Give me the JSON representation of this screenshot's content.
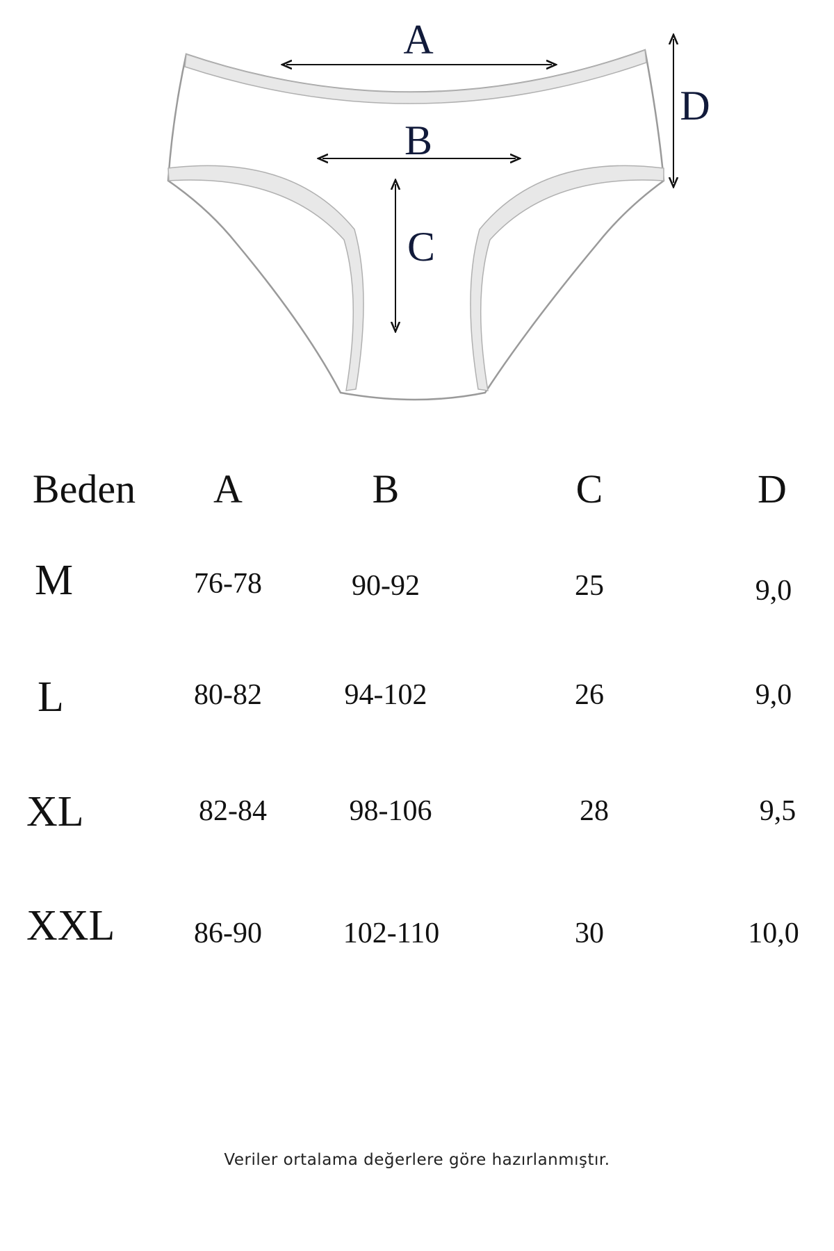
{
  "diagram": {
    "labels": {
      "a": "A",
      "b": "B",
      "c": "C",
      "d": "D"
    },
    "line_color": "#111a3a"
  },
  "table": {
    "headers": [
      "Beden",
      "A",
      "B",
      "C",
      "D"
    ],
    "rows": [
      {
        "size": "M",
        "a": "76-78",
        "b": "90-92",
        "c": "25",
        "d": "9,0"
      },
      {
        "size": "L",
        "a": "80-82",
        "b": "94-102",
        "c": "26",
        "d": "9,0"
      },
      {
        "size": "XL",
        "a": "82-84",
        "b": "98-106",
        "c": "28",
        "d": "9,5"
      },
      {
        "size": "XXL",
        "a": "86-90",
        "b": "102-110",
        "c": "30",
        "d": "10,0"
      }
    ]
  },
  "footer": {
    "note": "Veriler ortalama değerlere göre hazırlanmıştır."
  }
}
